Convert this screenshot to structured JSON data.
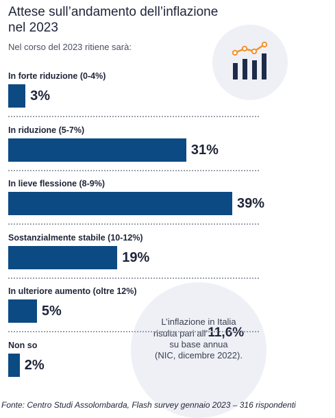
{
  "header": {
    "title_line1": "Attese sull’andamento dell’inflazione",
    "title_line2": "nel 2023",
    "subtitle": "Nel corso del 2023 ritiene sarà:"
  },
  "chart_data": {
    "type": "bar",
    "orientation": "horizontal",
    "title": "Attese sull’andamento dell’inflazione nel 2023",
    "subtitle": "Nel corso del 2023 ritiene sarà:",
    "categories": [
      "In forte riduzione (0-4%)",
      "In riduzione (5-7%)",
      "In lieve flessione (8-9%)",
      "Sostanzialmente stabile (10-12%)",
      "In ulteriore aumento (oltre 12%)",
      "Non so"
    ],
    "values": [
      3,
      31,
      39,
      19,
      5,
      2
    ],
    "value_labels": [
      "3%",
      "31%",
      "39%",
      "19%",
      "5%",
      "2%"
    ],
    "unit": "%",
    "bar_color": "#0c4a83"
  },
  "callout": {
    "line1": "L’inflazione in Italia",
    "line2_prefix": "risulta pari all’",
    "line2_value": "11,6%",
    "line3": "su base annua",
    "line4": "(NIC, dicembre 2022)."
  },
  "icon": {
    "name": "bar-chart-trend-icon",
    "bar_color": "#1e2a4a",
    "trend_color": "#f5912c"
  },
  "footer": {
    "source": "Fonte: Centro Studi Assolombarda, Flash survey gennaio 2023 – 316 rispondenti"
  }
}
